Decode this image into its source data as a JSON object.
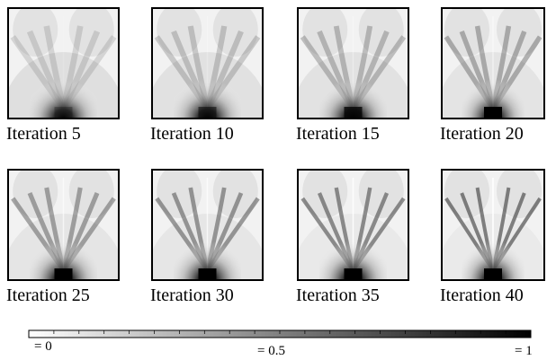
{
  "panels": [
    "Iteration 5",
    "Iteration 10",
    "Iteration 15",
    "Iteration 20",
    "Iteration 25",
    "Iteration 30",
    "Iteration 35",
    "Iteration 40"
  ],
  "colorbar": {
    "labels": [
      "= 0",
      "= 0.5",
      "= 1"
    ]
  }
}
